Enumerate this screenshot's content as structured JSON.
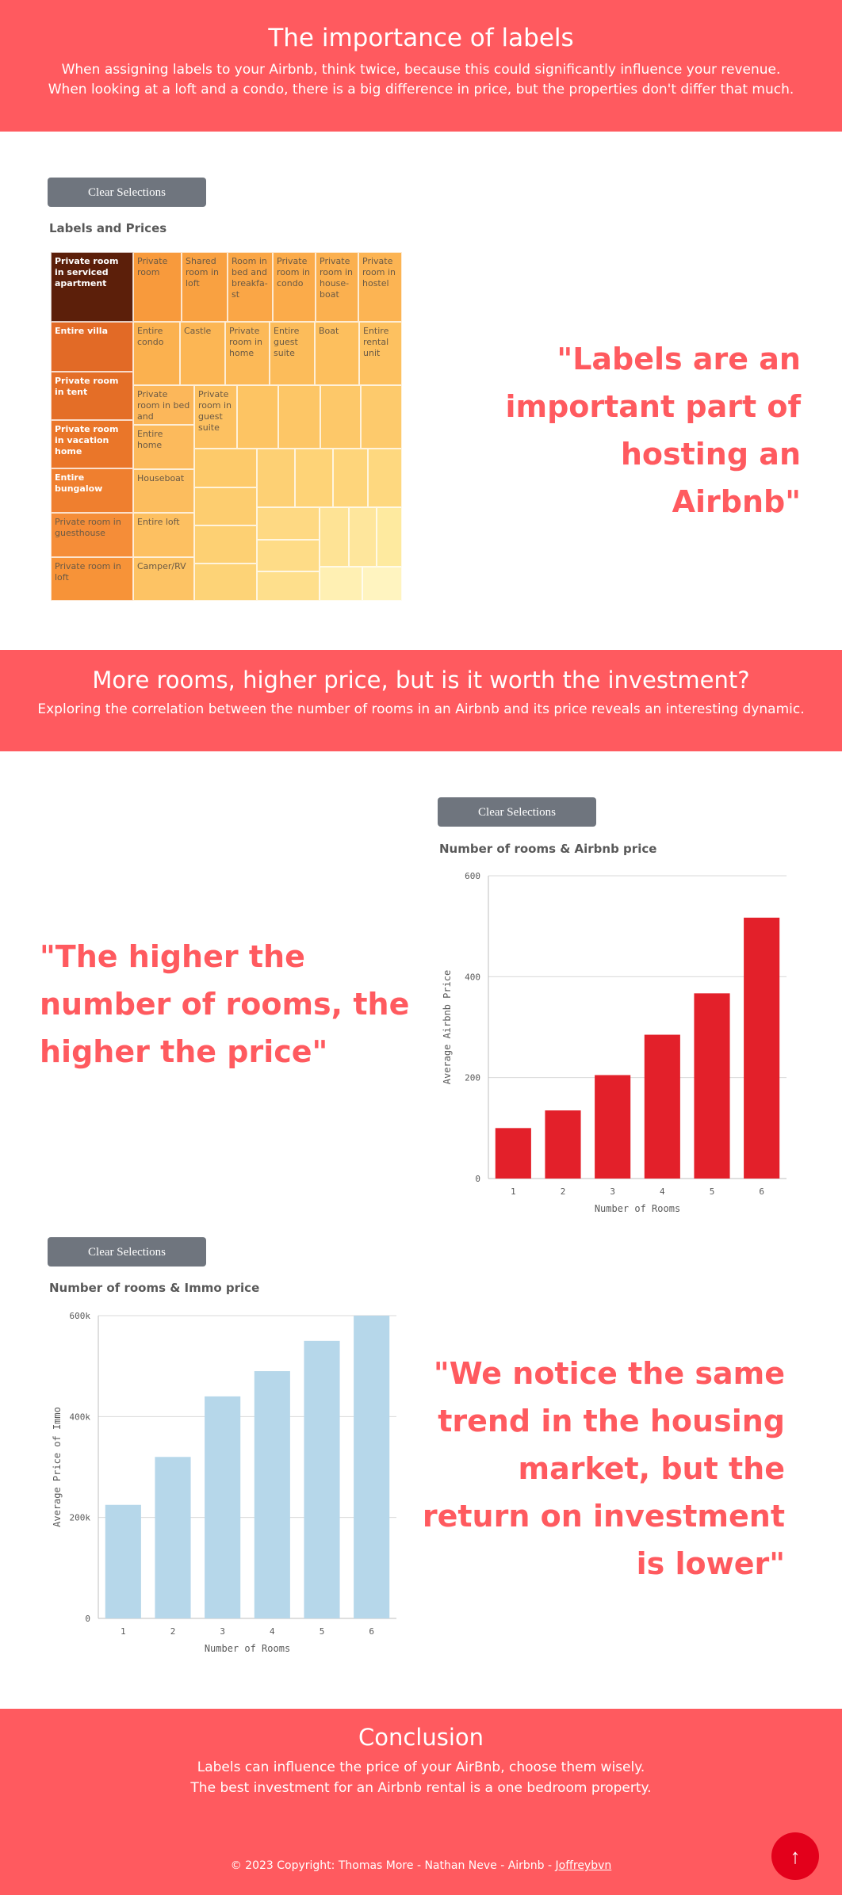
{
  "section1": {
    "title": "The importance of labels",
    "line1": "When assigning labels to your Airbnb, think twice, because this could significantly influence your revenue.",
    "line2": "When looking at a loft and a condo, there is a big difference in price, but the properties don't differ that much."
  },
  "treemap": {
    "clear_label": "Clear Selections",
    "title": "Labels and Prices",
    "cells": [
      "Private room in serviced apartment",
      "Entire villa",
      "Private room in tent",
      "Private room in vacation home",
      "Entire bungalow",
      "Private room in guesthouse",
      "Private room in loft",
      "Private room",
      "Shared room in loft",
      "Room in bed and breakfa-st",
      "Private room in condo",
      "Private room in house-boat",
      "Private room in hostel",
      "Entire condo",
      "Castle",
      "Private room in home",
      "Entire guest suite",
      "Boat",
      "Entire rental unit",
      "Private room in bed and breakf...",
      "Private room in guest suite",
      "Entire home",
      "Houseboat",
      "Entire loft",
      "Camper/RV"
    ],
    "colors": {
      "darkest": "#5c1f0a",
      "dark": "#e26a26",
      "mid": "#f7923a",
      "light": "#fec76a",
      "lightest": "#fff4c0"
    }
  },
  "quote1": "\"Labels are an important part of hosting an Airbnb\"",
  "section2": {
    "title": "More rooms, higher price, but is it worth the investment?",
    "line1": "Exploring the correlation between the number of rooms in an Airbnb and its price reveals an interesting dynamic."
  },
  "chart_airbnb": {
    "clear_label": "Clear Selections",
    "title": "Number of rooms & Airbnb price"
  },
  "quote2": "\"The higher the number of rooms, the higher the price\"",
  "chart_immo": {
    "clear_label": "Clear Selections",
    "title": "Number of rooms & Immo price"
  },
  "quote3": "\"We notice the same trend in the housing market, but the return on investment is lower\"",
  "conclusion": {
    "title": "Conclusion",
    "line1": "Labels can influence the price of your AirBnb, choose them wisely.",
    "line2": "The best investment for an Airbnb rental is a one bedroom property."
  },
  "footer": {
    "copyright": "© 2023 Copyright: Thomas More - Nathan Neve - Airbnb -",
    "link": "Joffreybvn"
  },
  "scroll_top_icon": "arrow-up-icon",
  "chart_data": [
    {
      "type": "bar",
      "title": "Number of rooms & Airbnb price",
      "categories": [
        "1",
        "2",
        "3",
        "4",
        "5",
        "6"
      ],
      "values": [
        100,
        135,
        205,
        285,
        367,
        517
      ],
      "xlabel": "Number of Rooms",
      "ylabel": "Average Airbnb Price",
      "ylim": [
        0,
        600
      ],
      "ticks": [
        "0",
        "200",
        "400",
        "600"
      ],
      "tick_values": [
        0,
        200,
        400,
        600
      ],
      "color": "#e3202a",
      "grid": true
    },
    {
      "type": "bar",
      "title": "Number of rooms & Immo price",
      "categories": [
        "1",
        "2",
        "3",
        "4",
        "5",
        "6"
      ],
      "values": [
        225000,
        320000,
        440000,
        490000,
        550000,
        600000
      ],
      "xlabel": "Number of Rooms",
      "ylabel": "Average Price of Immo",
      "ylim": [
        0,
        600000
      ],
      "ticks": [
        "0",
        "200k",
        "400k",
        "600k"
      ],
      "tick_values": [
        0,
        200000,
        400000,
        600000
      ],
      "color": "#b6d7ea",
      "grid": true
    }
  ]
}
